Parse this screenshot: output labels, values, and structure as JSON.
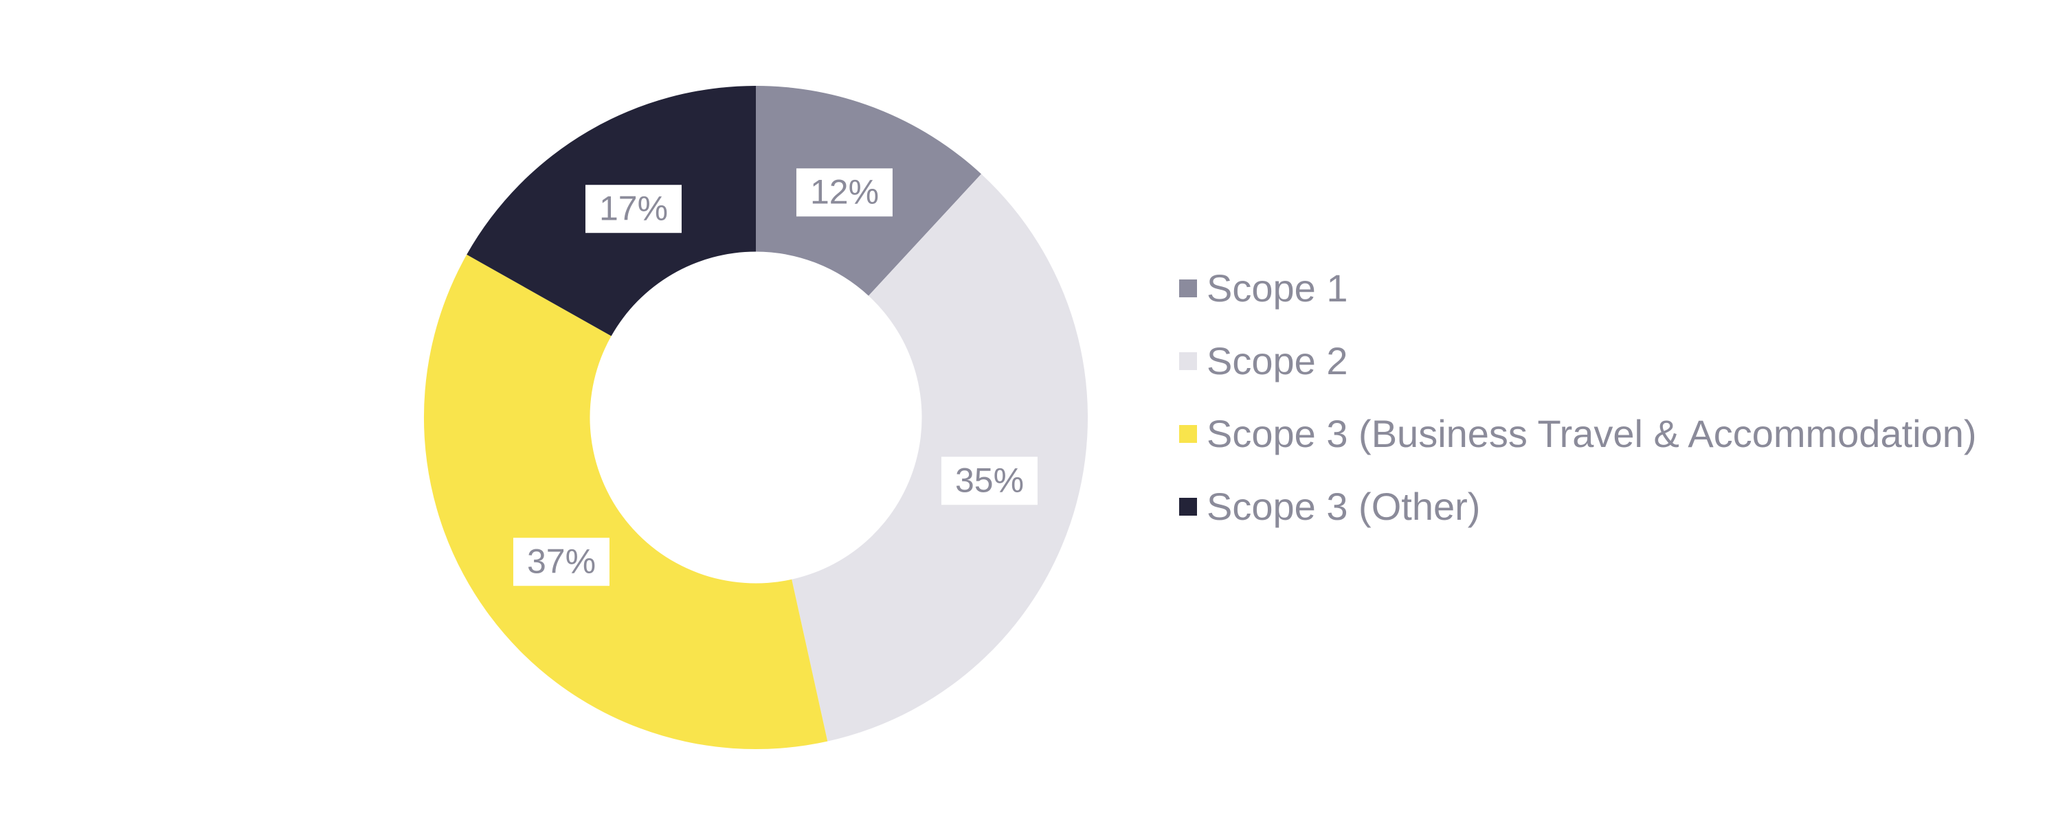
{
  "chart_data": {
    "type": "pie",
    "subtype": "donut",
    "title": "",
    "direction": "clockwise",
    "start_angle_deg": 0,
    "hole_ratio": 0.5,
    "legend_position": "right",
    "slices": [
      {
        "label": "Scope 1",
        "value_pct": 12,
        "display": "12%",
        "color": "#8B8B9D"
      },
      {
        "label": "Scope 2",
        "value_pct": 35,
        "display": "35%",
        "color": "#E4E3E9"
      },
      {
        "label": "Scope 3 (Business Travel & Accommodation)",
        "value_pct": 37,
        "display": "37%",
        "color": "#F9E44C"
      },
      {
        "label": "Scope 3 (Other)",
        "value_pct": 17,
        "display": "17%",
        "color": "#232338"
      }
    ],
    "colors": {
      "background": "#FFFFFF",
      "slice_label_text": "#8B8B9A",
      "slice_label_box": "#FFFFFF",
      "legend_text": "#8B8B9A"
    }
  }
}
